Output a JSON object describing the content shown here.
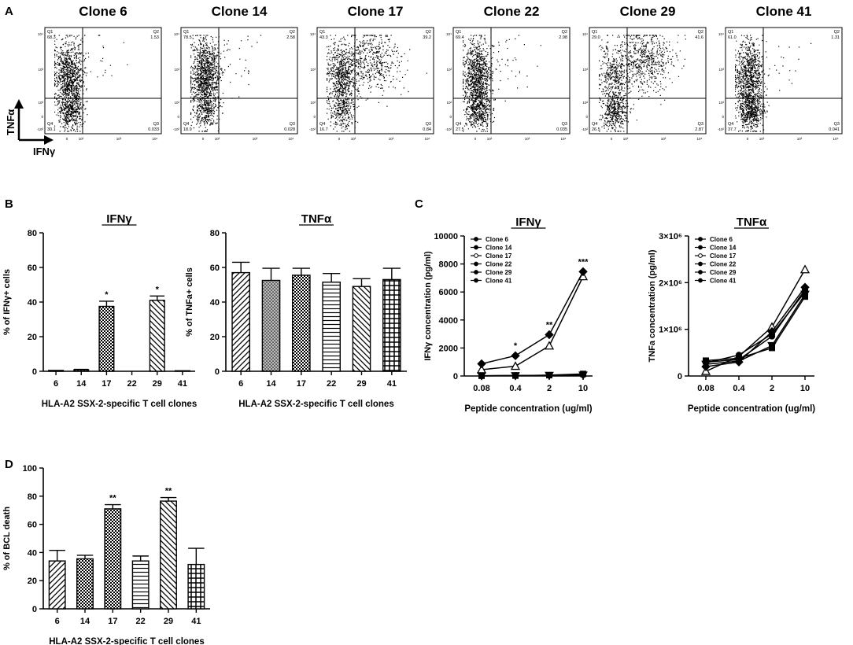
{
  "panel_labels": {
    "a": "A",
    "b": "B",
    "c": "C",
    "d": "D"
  },
  "panel_a": {
    "y_axis_label": "TNFα",
    "x_axis_label": "IFNγ",
    "tick_texts": {
      "y_10_4": "10⁴",
      "y_10_3": "10³",
      "y_10_2": "10²",
      "y_0": "0",
      "y_neg": "-10²",
      "x_0": "0",
      "x_10_2": "10²",
      "x_10_3": "10³",
      "x_10_4": "10⁴"
    },
    "quadrant_names": {
      "q1": "Q1",
      "q2": "Q2",
      "q3": "Q3",
      "q4": "Q4"
    },
    "plots": [
      {
        "title": "Clone 6",
        "q1": "68.3",
        "q2": "1.53",
        "q3": "0.033",
        "q4": "30.1"
      },
      {
        "title": "Clone 14",
        "q1": "78.5",
        "q2": "2.58",
        "q3": "0.028",
        "q4": "18.9"
      },
      {
        "title": "Clone 17",
        "q1": "43.3",
        "q2": "39.2",
        "q3": "0.84",
        "q4": "16.7"
      },
      {
        "title": "Clone 22",
        "q1": "69.4",
        "q2": "2.98",
        "q3": "0.035",
        "q4": "27.5"
      },
      {
        "title": "Clone 29",
        "q1": "29.0",
        "q2": "41.6",
        "q3": "2.87",
        "q4": "26.5"
      },
      {
        "title": "Clone 41",
        "q1": "61.0",
        "q2": "1.31",
        "q3": "0.041",
        "q4": "37.7"
      }
    ]
  },
  "chart_data": [
    {
      "panel": "B-left",
      "type": "bar",
      "title": "IFNγ",
      "ylabel": "% of IFNγ+ cells",
      "xlabel": "HLA-A2 SSX-2-specific T cell clones",
      "categories": [
        "6",
        "14",
        "17",
        "22",
        "29",
        "41"
      ],
      "values": [
        0.5,
        0.8,
        37.5,
        0,
        41,
        0.3
      ],
      "errors": [
        0,
        0.3,
        3,
        0,
        2.5,
        0
      ],
      "annotations": [
        "",
        "",
        "*",
        "",
        "*",
        ""
      ],
      "ylim": [
        0,
        80
      ],
      "yticks": [
        "0",
        "20",
        "40",
        "60",
        "80"
      ]
    },
    {
      "panel": "B-right",
      "type": "bar",
      "title": "TNFα",
      "ylabel": "% of TNFa+ cells",
      "xlabel": "HLA-A2 SSX-2-specific T cell clones",
      "categories": [
        "6",
        "14",
        "17",
        "22",
        "29",
        "41"
      ],
      "values": [
        57,
        52.5,
        55.5,
        51.5,
        49,
        53
      ],
      "errors": [
        6,
        7,
        4,
        5,
        4.5,
        6.5
      ],
      "ylim": [
        0,
        80
      ],
      "yticks": [
        "0",
        "20",
        "40",
        "60",
        "80"
      ]
    },
    {
      "panel": "C-left",
      "type": "line",
      "title": "IFNγ",
      "ylabel": "IFNγ concentration (pg/ml)",
      "xlabel": "Peptide concentration (ug/ml)",
      "x": [
        "0.08",
        "0.4",
        "2",
        "10"
      ],
      "series": [
        {
          "name": "Clone 6",
          "values": [
            20,
            30,
            40,
            80
          ]
        },
        {
          "name": "Clone 14",
          "values": [
            10,
            20,
            60,
            150
          ]
        },
        {
          "name": "Clone 17",
          "values": [
            450,
            700,
            2150,
            7100
          ]
        },
        {
          "name": "Clone 22",
          "values": [
            15,
            20,
            40,
            60
          ]
        },
        {
          "name": "Clone 29",
          "values": [
            870,
            1450,
            2950,
            7450
          ]
        },
        {
          "name": "Clone 41",
          "values": [
            10,
            25,
            50,
            100
          ]
        }
      ],
      "annotations": [
        "",
        "*",
        "**",
        "***"
      ],
      "ylim": [
        0,
        10000
      ],
      "yticks": [
        "0",
        "2000",
        "4000",
        "6000",
        "8000",
        "10000"
      ]
    },
    {
      "panel": "C-right",
      "type": "line",
      "title": "TNFα",
      "ylabel": "TNFa concentration (pg/ml)",
      "xlabel": "Peptide concentration (ug/ml)",
      "x": [
        "0.08",
        "0.4",
        "2",
        "10"
      ],
      "series": [
        {
          "name": "Clone 6",
          "values": [
            300000,
            350000,
            850000,
            1850000
          ]
        },
        {
          "name": "Clone 14",
          "values": [
            330000,
            380000,
            600000,
            1700000
          ]
        },
        {
          "name": "Clone 17",
          "values": [
            100000,
            420000,
            1050000,
            2280000
          ]
        },
        {
          "name": "Clone 22",
          "values": [
            250000,
            320000,
            650000,
            1750000
          ]
        },
        {
          "name": "Clone 29",
          "values": [
            200000,
            300000,
            950000,
            1900000
          ]
        },
        {
          "name": "Clone 41",
          "values": [
            280000,
            450000,
            900000,
            1800000
          ]
        }
      ],
      "ylim": [
        0,
        3000000
      ],
      "yticks": [
        "0",
        "1×10⁶",
        "2×10⁶",
        "3×10⁶"
      ]
    },
    {
      "panel": "D",
      "type": "bar",
      "title": "",
      "ylabel": "% of BCL death",
      "xlabel": "HLA-A2 SSX-2-specific  T cell clones",
      "categories": [
        "6",
        "14",
        "17",
        "22",
        "29",
        "41"
      ],
      "values": [
        34,
        35.5,
        71,
        34,
        76.5,
        31.5
      ],
      "errors": [
        7.5,
        2.5,
        3,
        3.5,
        2.5,
        11.5
      ],
      "annotations": [
        "",
        "",
        "**",
        "",
        "**",
        ""
      ],
      "ylim": [
        0,
        100
      ],
      "yticks": [
        "0",
        "20",
        "40",
        "60",
        "80",
        "100"
      ]
    }
  ]
}
